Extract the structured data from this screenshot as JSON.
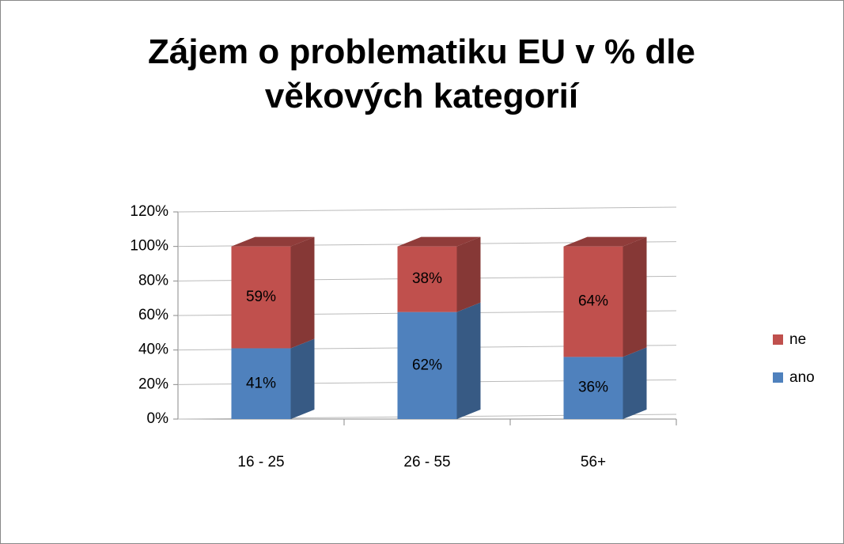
{
  "chart_data": {
    "type": "stacked_bar_3d",
    "title": "Zájem o problematiku EU v % dle věkových kategorií",
    "categories": [
      "16 - 25",
      "26 - 55",
      "56+"
    ],
    "series": [
      {
        "name": "ano",
        "color": "#4f81bd",
        "values": [
          41,
          62,
          36
        ],
        "value_labels": [
          "41%",
          "62%",
          "36%"
        ]
      },
      {
        "name": "ne",
        "color": "#c0504d",
        "values": [
          59,
          38,
          64
        ],
        "value_labels": [
          "59%",
          "38%",
          "64%"
        ]
      }
    ],
    "ylim": [
      0,
      120
    ],
    "yticks": [
      {
        "value": 0,
        "label": "0%"
      },
      {
        "value": 20,
        "label": "20%"
      },
      {
        "value": 40,
        "label": "40%"
      },
      {
        "value": 60,
        "label": "60%"
      },
      {
        "value": 80,
        "label": "80%"
      },
      {
        "value": 100,
        "label": "100%"
      },
      {
        "value": 120,
        "label": "120%"
      }
    ],
    "grid": true,
    "legend": "right"
  }
}
